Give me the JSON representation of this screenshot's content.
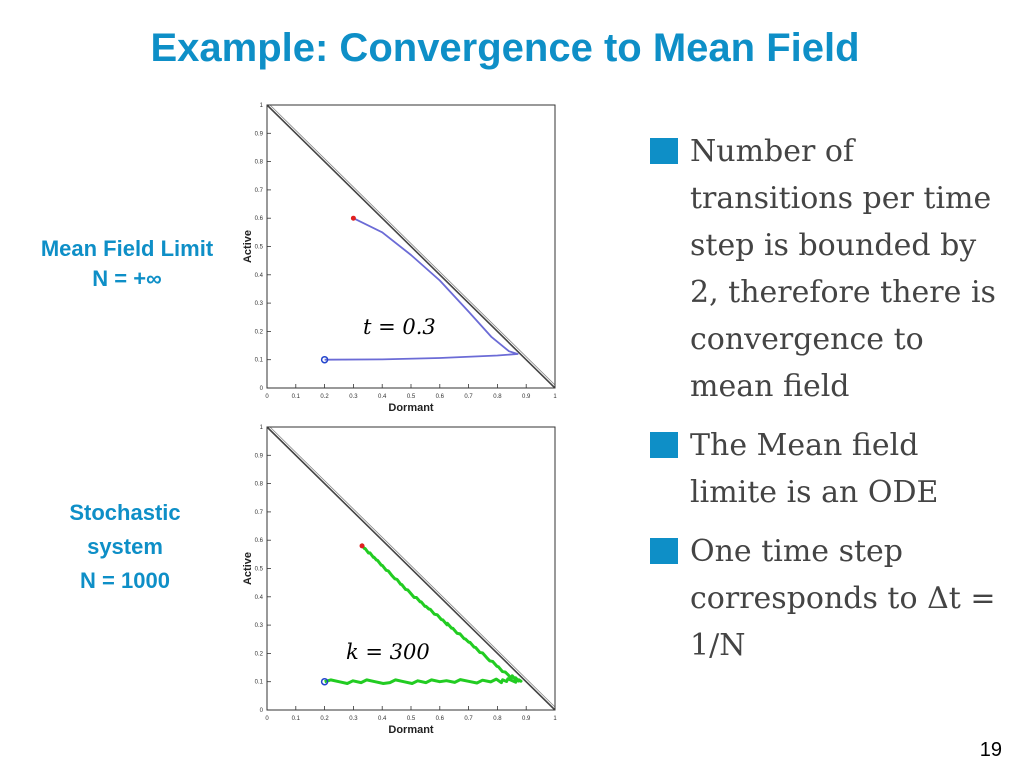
{
  "title": "Example: Convergence to Mean Field",
  "labels": {
    "top_line1": "Mean Field Limit",
    "top_line2": "N = +∞",
    "bottom_line1": "Stochastic",
    "bottom_line2": "system",
    "bottom_line3": "N = 1000"
  },
  "annotations": {
    "top": "t = 0.3",
    "bottom": "k = 300"
  },
  "bullets": [
    "Number of transitions per time step is bounded by 2, therefore there is convergence to mean field",
    "The Mean field limite is an ODE",
    "One time step corresponds to Δt = 1/N"
  ],
  "page_number": "19",
  "colors": {
    "accent": "#0e8fc7",
    "ode_curve": "#6b6bd6",
    "stochastic_curve": "#22cc22",
    "start_marker": "#e02020",
    "end_marker": "#2244cc"
  },
  "chart_data": [
    {
      "type": "line",
      "xlabel": "Dormant",
      "ylabel": "Active",
      "xlim": [
        0,
        1
      ],
      "ylim": [
        0,
        1
      ],
      "ticks": [
        "0",
        "0.1",
        "0.2",
        "0.3",
        "0.4",
        "0.5",
        "0.6",
        "0.7",
        "0.8",
        "0.9",
        "1"
      ],
      "series": [
        {
          "x": [
            0.3,
            0.4,
            0.5,
            0.6,
            0.7,
            0.78,
            0.84,
            0.87,
            0.8,
            0.6,
            0.4,
            0.2
          ],
          "y": [
            0.6,
            0.55,
            0.47,
            0.38,
            0.27,
            0.18,
            0.13,
            0.12,
            0.115,
            0.106,
            0.101,
            0.1
          ]
        }
      ],
      "diagonal": true
    },
    {
      "type": "line",
      "xlabel": "Dormant",
      "ylabel": "Active",
      "xlim": [
        0,
        1
      ],
      "ylim": [
        0,
        1
      ],
      "ticks": [
        "0",
        "0.1",
        "0.2",
        "0.3",
        "0.4",
        "0.5",
        "0.6",
        "0.7",
        "0.8",
        "0.9",
        "1"
      ],
      "series": [
        {
          "x": [
            0.33,
            0.38,
            0.44,
            0.5,
            0.56,
            0.63,
            0.7,
            0.77,
            0.84,
            0.88,
            0.8,
            0.6,
            0.4,
            0.2
          ],
          "y": [
            0.58,
            0.53,
            0.47,
            0.41,
            0.36,
            0.3,
            0.24,
            0.18,
            0.12,
            0.105,
            0.103,
            0.1,
            0.1,
            0.1
          ]
        }
      ],
      "diagonal": true
    }
  ]
}
